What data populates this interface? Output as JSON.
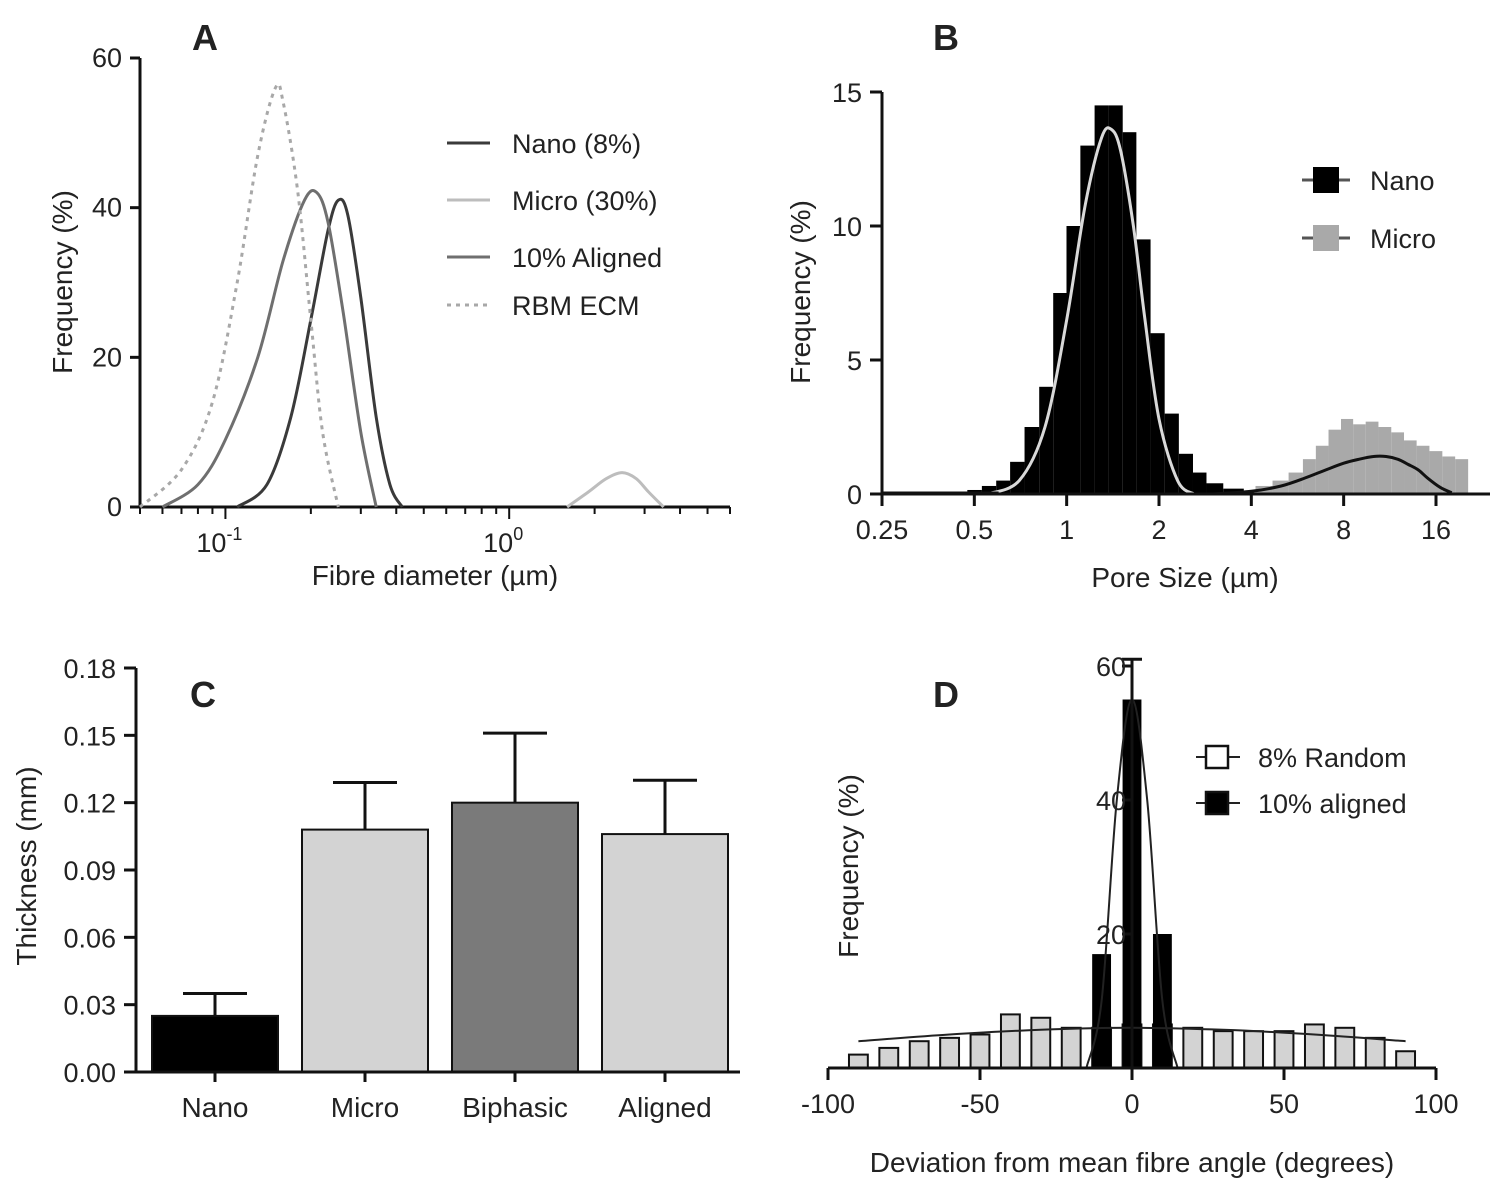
{
  "colors": {
    "nano": "#3a3a3a",
    "micro": "#bdbdbd",
    "aligned": "#6f6f6f",
    "rbm_ecm": "#a8a8a8",
    "bar_nano": "#000000",
    "bar_micro": "#d3d3d3",
    "bar_biphasic": "#7a7a7a",
    "bar_aligned": "#d3d3d3",
    "hist_nano": "#000000",
    "hist_micro": "#a9a9a9",
    "d_random": "#d3d3d3",
    "d_aligned": "#000000"
  },
  "chart_data": [
    {
      "panel": "A",
      "type": "line",
      "xlabel": "Fibre diameter (µm)",
      "ylabel": "Frequency (%)",
      "xscale": "log",
      "xlim": [
        0.05,
        6
      ],
      "ylim": [
        0,
        60
      ],
      "yticks": [
        0,
        20,
        40,
        60
      ],
      "xticks": [
        {
          "value": 0.1,
          "base": "10",
          "exp": "-1"
        },
        {
          "value": 1,
          "base": "10",
          "exp": "0"
        }
      ],
      "legend_position": "top-right",
      "series": [
        {
          "name": "Nano (8%)",
          "style": "solid",
          "color_key": "nano",
          "x": [
            0.11,
            0.14,
            0.17,
            0.2,
            0.23,
            0.25,
            0.27,
            0.3,
            0.34,
            0.38,
            0.42
          ],
          "y": [
            0,
            3,
            12,
            25,
            37,
            41,
            39,
            28,
            12,
            3,
            0
          ]
        },
        {
          "name": "Micro (30%)",
          "style": "solid",
          "color_key": "micro",
          "x": [
            1.6,
            1.9,
            2.2,
            2.5,
            2.8,
            3.1,
            3.5
          ],
          "y": [
            0,
            2,
            3.8,
            4.6,
            3.8,
            2,
            0
          ]
        },
        {
          "name": "10% Aligned",
          "style": "solid",
          "color_key": "aligned",
          "x": [
            0.06,
            0.08,
            0.1,
            0.13,
            0.16,
            0.19,
            0.21,
            0.23,
            0.26,
            0.3,
            0.34
          ],
          "y": [
            0,
            3,
            9,
            20,
            33,
            41,
            42,
            38,
            26,
            10,
            0
          ]
        },
        {
          "name": "RBM ECM",
          "style": "dotted",
          "color_key": "rbm_ecm",
          "x": [
            0.05,
            0.07,
            0.09,
            0.11,
            0.13,
            0.15,
            0.16,
            0.18,
            0.2,
            0.22,
            0.25
          ],
          "y": [
            0,
            5,
            14,
            30,
            47,
            56,
            54,
            42,
            25,
            10,
            0
          ]
        }
      ]
    },
    {
      "panel": "B",
      "type": "bar",
      "xlabel": "Pore Size (µm)",
      "ylabel": "Frequency (%)",
      "xscale": "log2",
      "xlim": [
        0.25,
        24
      ],
      "ylim": [
        0,
        15
      ],
      "yticks": [
        0,
        5,
        10,
        15
      ],
      "xticks": [
        "0.25",
        "0.5",
        "1",
        "2",
        "4",
        "8",
        "16"
      ],
      "xtick_values": [
        0.25,
        0.5,
        1,
        2,
        4,
        8,
        16
      ],
      "legend_position": "top-right",
      "series": [
        {
          "name": "Nano",
          "color_key": "hist_nano",
          "x": [
            0.3,
            0.35,
            0.4,
            0.45,
            0.5,
            0.56,
            0.62,
            0.69,
            0.77,
            0.86,
            0.95,
            1.05,
            1.17,
            1.3,
            1.45,
            1.6,
            1.78,
            1.98,
            2.2,
            2.45,
            2.72,
            3.0,
            3.5
          ],
          "y": [
            0.05,
            0.05,
            0.05,
            0.05,
            0.15,
            0.3,
            0.5,
            1.2,
            2.5,
            4.0,
            7.5,
            10.0,
            13.0,
            14.5,
            14.5,
            13.5,
            9.5,
            6.0,
            3.0,
            1.5,
            0.8,
            0.4,
            0.2
          ]
        },
        {
          "name": "Micro",
          "color_key": "hist_micro",
          "x": [
            4.4,
            5.0,
            5.6,
            6.2,
            6.8,
            7.5,
            8.2,
            9.0,
            9.9,
            10.9,
            12.0,
            13.2,
            14.5,
            16.0,
            17.6,
            19.4
          ],
          "y": [
            0.3,
            0.5,
            0.8,
            1.3,
            1.8,
            2.4,
            2.8,
            2.6,
            2.7,
            2.5,
            2.3,
            2.0,
            1.8,
            1.6,
            1.4,
            1.3
          ]
        }
      ],
      "fits": [
        {
          "for": "Nano",
          "x": [
            0.55,
            0.7,
            0.85,
            1.0,
            1.15,
            1.3,
            1.4,
            1.5,
            1.65,
            1.8,
            2.0,
            2.3,
            2.6
          ],
          "y": [
            0,
            0.5,
            2.5,
            6.5,
            10.8,
            13.3,
            13.6,
            12.8,
            10.0,
            6.5,
            2.8,
            0.5,
            0
          ]
        },
        {
          "for": "Micro",
          "x": [
            3.0,
            4.0,
            5.0,
            6.0,
            7.0,
            8.0,
            9.0,
            10.0,
            11.0,
            12.0,
            13.0,
            14.0,
            15.0,
            16.5,
            18.0
          ],
          "y": [
            0,
            0.1,
            0.3,
            0.6,
            0.9,
            1.15,
            1.3,
            1.4,
            1.4,
            1.3,
            1.1,
            0.9,
            0.6,
            0.25,
            0.05
          ]
        }
      ]
    },
    {
      "panel": "C",
      "type": "bar",
      "ylabel": "Thickness (mm)",
      "ylim": [
        0,
        0.18
      ],
      "yticks": [
        "0.00",
        "0.03",
        "0.06",
        "0.09",
        "0.12",
        "0.15",
        "0.18"
      ],
      "ytick_values": [
        0,
        0.03,
        0.06,
        0.09,
        0.12,
        0.15,
        0.18
      ],
      "categories": [
        "Nano",
        "Micro",
        "Biphasic",
        "Aligned"
      ],
      "values": [
        0.025,
        0.108,
        0.12,
        0.106
      ],
      "errors": [
        0.01,
        0.021,
        0.031,
        0.024
      ],
      "color_keys": [
        "bar_nano",
        "bar_micro",
        "bar_biphasic",
        "bar_aligned"
      ]
    },
    {
      "panel": "D",
      "type": "bar",
      "xlabel": "Deviation from mean fibre angle (degrees)",
      "ylabel": "Frequency (%)",
      "xlim": [
        -100,
        100
      ],
      "ylim": [
        0,
        60
      ],
      "xticks": [
        "-100",
        "-50",
        "0",
        "50",
        "100"
      ],
      "xtick_values": [
        -100,
        -50,
        0,
        50,
        100
      ],
      "yticks": [
        "20",
        "40",
        "60"
      ],
      "ytick_values": [
        20,
        40,
        60
      ],
      "legend_position": "top-right",
      "series": [
        {
          "name": "8% Random",
          "color_key": "d_random",
          "x": [
            -90,
            -80,
            -70,
            -60,
            -50,
            -40,
            -30,
            -20,
            -10,
            0,
            10,
            20,
            30,
            40,
            50,
            60,
            70,
            80,
            90
          ],
          "y": [
            2,
            3,
            4,
            4.5,
            5,
            8,
            7.5,
            6,
            6,
            6.5,
            6.5,
            6,
            5.5,
            5.5,
            5.5,
            6.5,
            6,
            4.5,
            2.5
          ]
        },
        {
          "name": "10% aligned",
          "color_key": "d_aligned",
          "x": [
            -10,
            0,
            10
          ],
          "y": [
            17,
            55,
            20
          ]
        }
      ],
      "fits": [
        {
          "for": "8% Random",
          "x": [
            -90,
            -60,
            -30,
            0,
            30,
            60,
            90
          ],
          "y": [
            4,
            5,
            5.7,
            6,
            5.7,
            5,
            4
          ]
        },
        {
          "for": "10% aligned",
          "x": [
            -15,
            -10,
            -5,
            0,
            5,
            10,
            15
          ],
          "y": [
            0,
            10,
            40,
            55,
            40,
            10,
            0
          ]
        }
      ],
      "errorbar": {
        "x": 0,
        "y": 55,
        "err": 6
      }
    }
  ],
  "panels": {
    "a": {
      "letter": "A"
    },
    "b": {
      "letter": "B"
    },
    "c": {
      "letter": "C"
    },
    "d": {
      "letter": "D"
    }
  }
}
